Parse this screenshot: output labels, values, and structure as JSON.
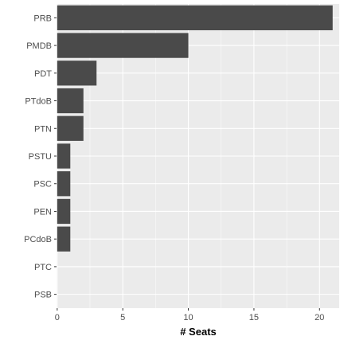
{
  "chart_data": {
    "type": "bar",
    "orientation": "horizontal",
    "categories": [
      "PRB",
      "PMDB",
      "PDT",
      "PTdoB",
      "PTN",
      "PSTU",
      "PSC",
      "PEN",
      "PCdoB",
      "PTC",
      "PSB"
    ],
    "values": [
      21,
      10,
      3,
      2,
      2,
      1,
      1,
      1,
      1,
      0,
      0
    ],
    "xlabel": "# Seats",
    "ylabel": "",
    "xlim": [
      -0.05,
      21.5
    ],
    "x_ticks": [
      0,
      5,
      10,
      15,
      20
    ],
    "grid": true,
    "colors": {
      "panel": "#ebebeb",
      "grid_major": "#ffffff",
      "bar": "#4a4a4a",
      "tick_text": "#4d4d4d"
    }
  }
}
